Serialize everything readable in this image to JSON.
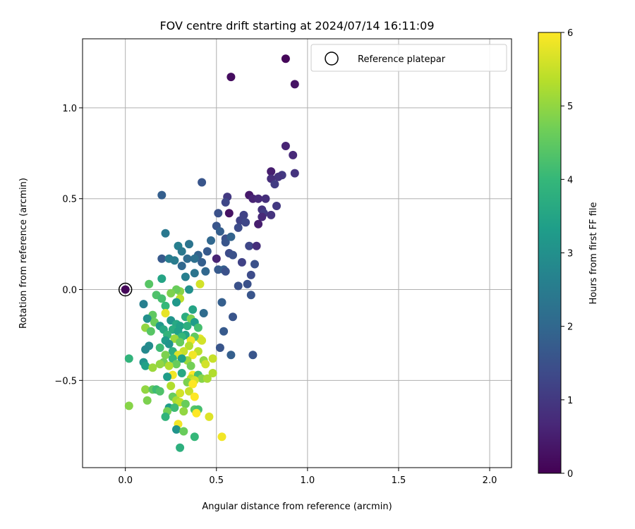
{
  "chart_data": {
    "type": "scatter",
    "title": "FOV centre drift starting at 2024/07/14 16:11:09",
    "xlabel": "Angular distance from reference (arcmin)",
    "ylabel": "Rotation from reference (arcmin)",
    "xlim": [
      -0.235,
      2.12
    ],
    "ylim": [
      -0.98,
      1.38
    ],
    "xticks": [
      0.0,
      0.5,
      1.0,
      1.5,
      2.0
    ],
    "xtick_labels": [
      "0.0",
      "0.5",
      "1.0",
      "1.5",
      "2.0"
    ],
    "yticks": [
      -0.5,
      0.0,
      0.5,
      1.0
    ],
    "ytick_labels": [
      "−0.5",
      "0.0",
      "0.5",
      "1.0"
    ],
    "grid": true,
    "legend": {
      "position": "top-right",
      "entries": [
        "Reference platepar"
      ]
    },
    "reference_point": {
      "x": 0.0,
      "y": 0.0
    },
    "colorbar": {
      "label": "Hours from first FF file",
      "range": [
        0,
        6
      ],
      "ticks": [
        0,
        1,
        2,
        3,
        4,
        5,
        6
      ],
      "colormap": "viridis"
    },
    "colormap_stops": [
      "#440154",
      "#482878",
      "#3e4989",
      "#31688e",
      "#26828e",
      "#1f9e89",
      "#35b779",
      "#6ece58",
      "#b5de2b",
      "#fde725"
    ],
    "points": [
      [
        0.0,
        0.0,
        0.1
      ],
      [
        0.88,
        1.27,
        0.1
      ],
      [
        0.58,
        1.17,
        0.2
      ],
      [
        0.93,
        1.13,
        0.3
      ],
      [
        0.88,
        0.79,
        0.6
      ],
      [
        0.92,
        0.74,
        0.7
      ],
      [
        0.8,
        0.65,
        0.5
      ],
      [
        0.93,
        0.64,
        0.9
      ],
      [
        0.86,
        0.63,
        1.0
      ],
      [
        0.84,
        0.62,
        0.9
      ],
      [
        0.8,
        0.61,
        0.8
      ],
      [
        0.82,
        0.58,
        1.1
      ],
      [
        0.42,
        0.59,
        1.6
      ],
      [
        0.2,
        0.52,
        1.8
      ],
      [
        0.56,
        0.51,
        1.0
      ],
      [
        0.68,
        0.52,
        0.4
      ],
      [
        0.7,
        0.5,
        0.6
      ],
      [
        0.73,
        0.5,
        0.7
      ],
      [
        0.77,
        0.5,
        0.8
      ],
      [
        0.55,
        0.48,
        1.3
      ],
      [
        0.75,
        0.44,
        0.9
      ],
      [
        0.83,
        0.46,
        1.0
      ],
      [
        0.76,
        0.42,
        1.1
      ],
      [
        0.75,
        0.4,
        0.7
      ],
      [
        0.8,
        0.41,
        0.9
      ],
      [
        0.51,
        0.42,
        1.5
      ],
      [
        0.57,
        0.42,
        0.3
      ],
      [
        0.65,
        0.41,
        1.2
      ],
      [
        0.63,
        0.38,
        1.2
      ],
      [
        0.66,
        0.37,
        1.3
      ],
      [
        0.62,
        0.34,
        1.4
      ],
      [
        0.73,
        0.36,
        0.5
      ],
      [
        0.5,
        0.35,
        1.6
      ],
      [
        0.52,
        0.32,
        1.8
      ],
      [
        0.55,
        0.28,
        1.5
      ],
      [
        0.55,
        0.26,
        1.6
      ],
      [
        0.58,
        0.29,
        1.9
      ],
      [
        0.47,
        0.27,
        2.0
      ],
      [
        0.68,
        0.24,
        1.3
      ],
      [
        0.72,
        0.24,
        0.8
      ],
      [
        0.22,
        0.31,
        2.4
      ],
      [
        0.29,
        0.24,
        2.6
      ],
      [
        0.35,
        0.25,
        2.3
      ],
      [
        0.31,
        0.21,
        2.4
      ],
      [
        0.45,
        0.21,
        1.7
      ],
      [
        0.57,
        0.2,
        1.4
      ],
      [
        0.59,
        0.19,
        1.5
      ],
      [
        0.5,
        0.17,
        0.6
      ],
      [
        0.4,
        0.19,
        1.9
      ],
      [
        0.38,
        0.17,
        2.2
      ],
      [
        0.34,
        0.17,
        2.1
      ],
      [
        0.42,
        0.15,
        1.8
      ],
      [
        0.2,
        0.17,
        1.7
      ],
      [
        0.24,
        0.17,
        2.5
      ],
      [
        0.27,
        0.16,
        2.5
      ],
      [
        0.31,
        0.13,
        2.0
      ],
      [
        0.64,
        0.15,
        1.2
      ],
      [
        0.71,
        0.14,
        1.5
      ],
      [
        0.51,
        0.11,
        1.7
      ],
      [
        0.54,
        0.11,
        1.8
      ],
      [
        0.55,
        0.1,
        1.5
      ],
      [
        0.44,
        0.1,
        2.0
      ],
      [
        0.38,
        0.09,
        2.3
      ],
      [
        0.33,
        0.07,
        2.6
      ],
      [
        0.69,
        0.08,
        1.4
      ],
      [
        0.2,
        0.06,
        3.5
      ],
      [
        0.62,
        0.02,
        1.5
      ],
      [
        0.67,
        0.03,
        1.5
      ],
      [
        0.41,
        0.03,
        5.6
      ],
      [
        0.13,
        0.03,
        4.4
      ],
      [
        0.69,
        -0.03,
        1.6
      ],
      [
        0.35,
        0.0,
        3.0
      ],
      [
        0.3,
        -0.01,
        4.9
      ],
      [
        0.28,
        0.0,
        4.6
      ],
      [
        0.25,
        -0.02,
        4.8
      ],
      [
        0.17,
        -0.03,
        4.3
      ],
      [
        0.2,
        -0.05,
        4.2
      ],
      [
        0.3,
        -0.05,
        5.4
      ],
      [
        0.28,
        -0.07,
        3.2
      ],
      [
        0.53,
        -0.07,
        1.8
      ],
      [
        0.1,
        -0.08,
        2.6
      ],
      [
        0.22,
        -0.09,
        4.0
      ],
      [
        0.37,
        -0.11,
        3.5
      ],
      [
        0.43,
        -0.13,
        2.1
      ],
      [
        0.22,
        -0.13,
        5.8
      ],
      [
        0.15,
        -0.14,
        4.5
      ],
      [
        0.33,
        -0.15,
        3.7
      ],
      [
        0.59,
        -0.15,
        1.6
      ],
      [
        0.12,
        -0.16,
        3.0
      ],
      [
        0.36,
        -0.16,
        4.8
      ],
      [
        0.38,
        -0.18,
        3.3
      ],
      [
        0.25,
        -0.17,
        3.1
      ],
      [
        0.16,
        -0.18,
        4.6
      ],
      [
        0.28,
        -0.19,
        3.6
      ],
      [
        0.19,
        -0.2,
        3.2
      ],
      [
        0.3,
        -0.2,
        3.4
      ],
      [
        0.34,
        -0.2,
        3.8
      ],
      [
        0.21,
        -0.22,
        3.6
      ],
      [
        0.11,
        -0.21,
        5.0
      ],
      [
        0.4,
        -0.21,
        4.2
      ],
      [
        0.26,
        -0.22,
        3.7
      ],
      [
        0.29,
        -0.23,
        3.4
      ],
      [
        0.14,
        -0.23,
        4.4
      ],
      [
        0.54,
        -0.23,
        1.7
      ],
      [
        0.23,
        -0.25,
        3.9
      ],
      [
        0.33,
        -0.25,
        3.5
      ],
      [
        0.31,
        -0.26,
        4.0
      ],
      [
        0.27,
        -0.27,
        5.1
      ],
      [
        0.41,
        -0.27,
        5.8
      ],
      [
        0.38,
        -0.26,
        4.5
      ],
      [
        0.22,
        -0.28,
        3.3
      ],
      [
        0.36,
        -0.28,
        5.9
      ],
      [
        0.3,
        -0.29,
        4.6
      ],
      [
        0.42,
        -0.28,
        5.6
      ],
      [
        0.24,
        -0.3,
        3.1
      ],
      [
        0.13,
        -0.31,
        2.9
      ],
      [
        0.19,
        -0.32,
        4.1
      ],
      [
        0.35,
        -0.31,
        5.3
      ],
      [
        0.11,
        -0.33,
        2.8
      ],
      [
        0.52,
        -0.32,
        1.6
      ],
      [
        0.26,
        -0.34,
        3.8
      ],
      [
        0.32,
        -0.34,
        5.5
      ],
      [
        0.4,
        -0.34,
        5.4
      ],
      [
        0.29,
        -0.36,
        5.7
      ],
      [
        0.37,
        -0.36,
        5.9
      ],
      [
        0.22,
        -0.36,
        4.8
      ],
      [
        0.58,
        -0.36,
        1.8
      ],
      [
        0.7,
        -0.36,
        1.6
      ],
      [
        0.02,
        -0.38,
        3.9
      ],
      [
        0.48,
        -0.38,
        5.5
      ],
      [
        0.26,
        -0.38,
        4.0
      ],
      [
        0.34,
        -0.39,
        5.1
      ],
      [
        0.43,
        -0.39,
        5.0
      ],
      [
        0.31,
        -0.38,
        3.4
      ],
      [
        0.1,
        -0.4,
        3.1
      ],
      [
        0.21,
        -0.4,
        4.7
      ],
      [
        0.19,
        -0.41,
        5.0
      ],
      [
        0.28,
        -0.41,
        4.6
      ],
      [
        0.11,
        -0.42,
        3.4
      ],
      [
        0.15,
        -0.43,
        5.1
      ],
      [
        0.24,
        -0.42,
        5.3
      ],
      [
        0.36,
        -0.42,
        4.7
      ],
      [
        0.44,
        -0.41,
        5.6
      ],
      [
        0.31,
        -0.46,
        3.6
      ],
      [
        0.26,
        -0.47,
        5.9
      ],
      [
        0.37,
        -0.47,
        6.0
      ],
      [
        0.4,
        -0.47,
        4.2
      ],
      [
        0.48,
        -0.46,
        5.3
      ],
      [
        0.23,
        -0.48,
        3.3
      ],
      [
        0.42,
        -0.49,
        4.9
      ],
      [
        0.36,
        -0.49,
        5.4
      ],
      [
        0.45,
        -0.49,
        5.2
      ],
      [
        0.38,
        -0.5,
        5.6
      ],
      [
        0.34,
        -0.51,
        4.8
      ],
      [
        0.37,
        -0.52,
        6.0
      ],
      [
        0.25,
        -0.53,
        5.3
      ],
      [
        0.11,
        -0.55,
        5.0
      ],
      [
        0.15,
        -0.55,
        4.5
      ],
      [
        0.17,
        -0.55,
        4.1
      ],
      [
        0.19,
        -0.56,
        4.3
      ],
      [
        0.35,
        -0.56,
        5.5
      ],
      [
        0.3,
        -0.57,
        5.6
      ],
      [
        0.26,
        -0.59,
        4.6
      ],
      [
        0.38,
        -0.59,
        6.0
      ],
      [
        0.12,
        -0.61,
        4.8
      ],
      [
        0.28,
        -0.61,
        5.2
      ],
      [
        0.3,
        -0.62,
        5.4
      ],
      [
        0.33,
        -0.63,
        4.6
      ],
      [
        0.02,
        -0.64,
        4.9
      ],
      [
        0.24,
        -0.65,
        3.3
      ],
      [
        0.27,
        -0.65,
        4.1
      ],
      [
        0.23,
        -0.67,
        4.7
      ],
      [
        0.38,
        -0.66,
        4.4
      ],
      [
        0.4,
        -0.66,
        4.2
      ],
      [
        0.39,
        -0.68,
        6.0
      ],
      [
        0.32,
        -0.67,
        5.0
      ],
      [
        0.22,
        -0.7,
        3.9
      ],
      [
        0.46,
        -0.7,
        5.7
      ],
      [
        0.29,
        -0.74,
        5.9
      ],
      [
        0.28,
        -0.77,
        3.1
      ],
      [
        0.32,
        -0.78,
        4.6
      ],
      [
        0.38,
        -0.81,
        4.0
      ],
      [
        0.53,
        -0.81,
        5.9
      ],
      [
        0.3,
        -0.87,
        3.8
      ]
    ]
  }
}
